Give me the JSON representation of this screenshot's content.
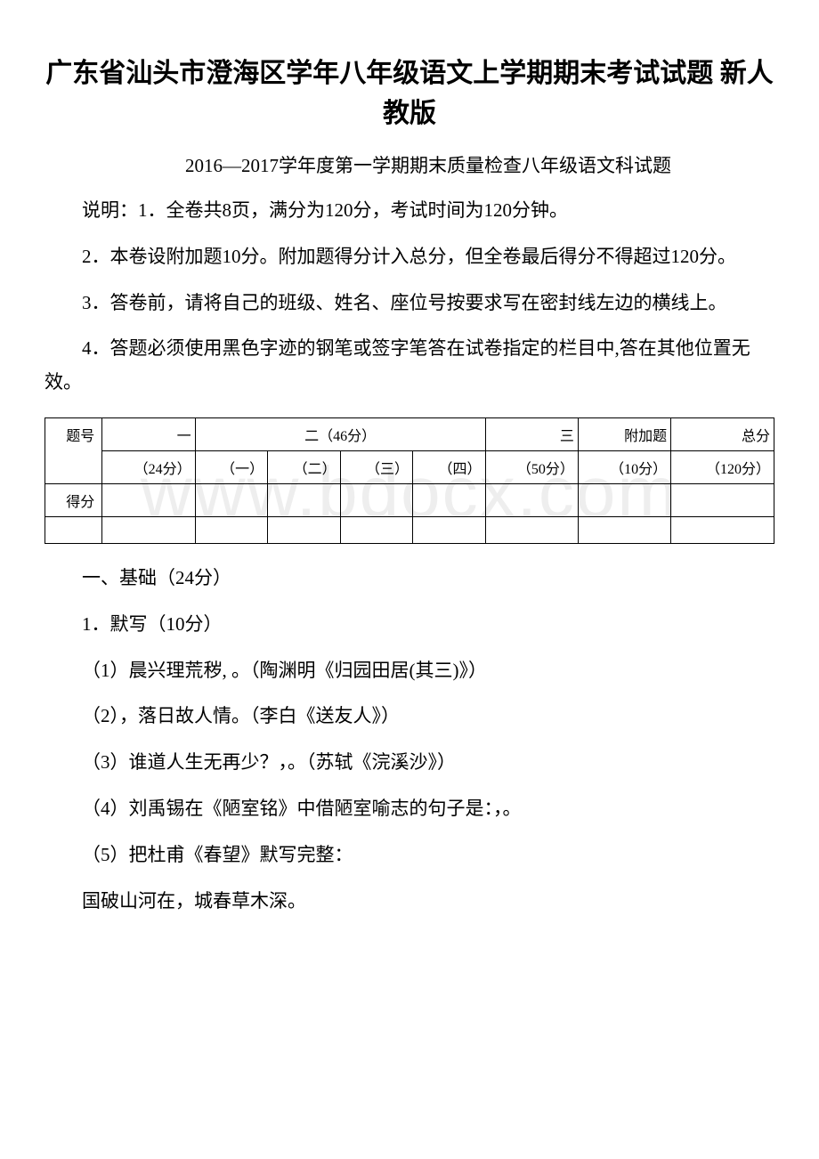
{
  "title": "广东省汕头市澄海区学年八年级语文上学期期末考试试题 新人教版",
  "subtitle": "2016—2017学年度第一学期期末质量检查八年级语文科试题",
  "instructions": [
    "说明：1．全卷共8页，满分为120分，考试时间为120分钟。",
    "2．本卷设附加题10分。附加题得分计入总分，但全卷最后得分不得超过120分。",
    "3．答卷前，请将自己的班级、姓名、座位号按要求写在密封线左边的横线上。",
    "4．答题必须使用黑色字迹的钢笔或签字笔答在试卷指定的栏目中,答在其他位置无效。"
  ],
  "table": {
    "row1": {
      "label": "题号",
      "col1_header": "一",
      "col1_sub": "（24分）",
      "col2_header": "二（46分）",
      "col2_sub1": "（一）",
      "col2_sub2": "（二）",
      "col2_sub3": "（三）",
      "col2_sub4": "（四）",
      "col3_header": "三",
      "col3_sub": "（50分）",
      "col4_header": "附加题",
      "col4_sub": "（10分）",
      "col5_header": "总分",
      "col5_sub": "（120分）"
    },
    "row2_label": "得分"
  },
  "section1": {
    "heading": "一、基础（24分）",
    "q1_title": "1．默写（10分）",
    "items": [
      "（1）晨兴理荒秽, 。（陶渊明《归园田居(其三)》）",
      "（2），落日故人情。（李白《送友人》）",
      "（3）谁道人生无再少？，。（苏轼《浣溪沙》）",
      "（4）刘禹锡在《陋室铭》中借陋室喻志的句子是：，。",
      "（5）把杜甫《春望》默写完整：",
      "国破山河在，城春草木深。"
    ]
  },
  "watermark_text": "www.bdocx.com"
}
